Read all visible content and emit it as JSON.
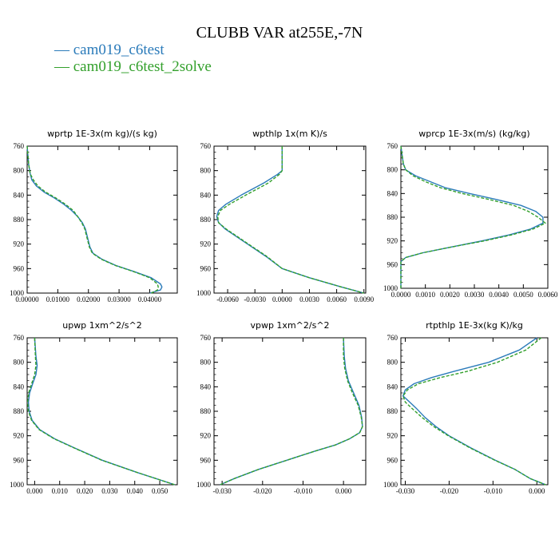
{
  "title": "CLUBB VAR at255E,-7N",
  "legend": [
    {
      "name": "cam019_c6test",
      "color": "#2b7bba",
      "dash": false
    },
    {
      "name": "cam019_c6test_2solve",
      "color": "#33a02c",
      "dash": true
    }
  ],
  "chart_data": [
    {
      "type": "line",
      "title": "wprtp  1E-3x(m kg)/(s kg)",
      "xlim": [
        0,
        0.049
      ],
      "ylim": [
        760,
        1000
      ],
      "y_inverted": true,
      "xticks": [
        "0.00000",
        "0.01000",
        "0.02000",
        "0.03000",
        "0.04000"
      ],
      "xtick_values": [
        0,
        0.01,
        0.02,
        0.03,
        0.04
      ],
      "yticks": [
        "760",
        "800",
        "840",
        "880",
        "920",
        "960",
        "1000"
      ],
      "series": [
        {
          "name": "cam019_c6test",
          "y": [
            760,
            790,
            805,
            815,
            825,
            835,
            845,
            855,
            865,
            875,
            885,
            895,
            905,
            915,
            925,
            935,
            945,
            955,
            965,
            975,
            985,
            990,
            995,
            1000
          ],
          "x": [
            0,
            0.0005,
            0.001,
            0.0015,
            0.003,
            0.0055,
            0.009,
            0.012,
            0.0145,
            0.0165,
            0.018,
            0.019,
            0.0195,
            0.02,
            0.0205,
            0.0215,
            0.0245,
            0.029,
            0.035,
            0.0405,
            0.0435,
            0.044,
            0.0435,
            0.04
          ]
        },
        {
          "name": "cam019_c6test_2solve",
          "y": [
            760,
            790,
            805,
            815,
            825,
            835,
            845,
            855,
            865,
            875,
            885,
            895,
            905,
            915,
            925,
            935,
            945,
            955,
            965,
            975,
            985,
            990,
            995,
            1000
          ],
          "x": [
            0,
            0.0005,
            0.001,
            0.002,
            0.0035,
            0.006,
            0.0095,
            0.0125,
            0.015,
            0.0165,
            0.0178,
            0.0188,
            0.0193,
            0.0198,
            0.0203,
            0.0213,
            0.0243,
            0.0288,
            0.0348,
            0.04,
            0.0425,
            0.0428,
            0.0425,
            0.0405
          ]
        }
      ]
    },
    {
      "type": "line",
      "title": "wpthlp  1x(m K)/s",
      "xlim": [
        -0.0075,
        0.0092
      ],
      "ylim": [
        760,
        1000
      ],
      "y_inverted": true,
      "xticks": [
        "-0.0060",
        "-0.0030",
        "0.0000",
        "0.0030",
        "0.0060",
        "0.0090"
      ],
      "xtick_values": [
        -0.006,
        -0.003,
        0,
        0.003,
        0.006,
        0.009
      ],
      "yticks": [
        "760",
        "800",
        "840",
        "880",
        "920",
        "960",
        "1000"
      ],
      "series": [
        {
          "name": "cam019_c6test",
          "y": [
            760,
            800,
            806,
            820,
            840,
            855,
            865,
            875,
            885,
            895,
            905,
            920,
            940,
            960,
            975,
            990,
            1000
          ],
          "x": [
            0,
            0,
            -0.0005,
            -0.002,
            -0.0045,
            -0.0062,
            -0.007,
            -0.0072,
            -0.007,
            -0.0063,
            -0.0053,
            -0.0038,
            -0.0018,
            0,
            0.003,
            0.0065,
            0.009
          ]
        },
        {
          "name": "cam019_c6test_2solve",
          "y": [
            760,
            800,
            806,
            820,
            840,
            855,
            865,
            875,
            885,
            895,
            905,
            920,
            940,
            960,
            975,
            990,
            1000
          ],
          "x": [
            0,
            0,
            -0.0003,
            -0.0015,
            -0.004,
            -0.0058,
            -0.0068,
            -0.0071,
            -0.007,
            -0.0062,
            -0.0052,
            -0.0037,
            -0.0017,
            0,
            0.003,
            0.0065,
            0.009
          ]
        }
      ]
    },
    {
      "type": "line",
      "title": "wprcp  1E-3x(m/s) (kg/kg)",
      "xlim": [
        0,
        0.006
      ],
      "ylim": [
        760,
        1000
      ],
      "y_inverted": true,
      "xticks": [
        "0.0000",
        "0.0010",
        "0.0020",
        "0.0030",
        "0.0040",
        "0.0050",
        "0.0060"
      ],
      "xtick_values": [
        0,
        0.001,
        0.002,
        0.003,
        0.004,
        0.005,
        0.006
      ],
      "yticks": [
        "760",
        "800",
        "840",
        "880",
        "920",
        "960",
        "1000"
      ],
      "series": [
        {
          "name": "cam019_c6test",
          "y": [
            760,
            790,
            800,
            810,
            820,
            830,
            840,
            850,
            860,
            870,
            880,
            890,
            900,
            910,
            920,
            930,
            940,
            948,
            955,
            1000
          ],
          "x": [
            0,
            0.0001,
            0.0002,
            0.0006,
            0.0012,
            0.0018,
            0.0028,
            0.0039,
            0.0049,
            0.0055,
            0.0058,
            0.0058,
            0.0053,
            0.0044,
            0.0033,
            0.0021,
            0.0009,
            0.0002,
            0,
            0
          ]
        },
        {
          "name": "cam019_c6test_2solve",
          "y": [
            760,
            790,
            800,
            810,
            820,
            830,
            840,
            850,
            860,
            870,
            880,
            890,
            900,
            910,
            920,
            930,
            940,
            948,
            955,
            1000
          ],
          "x": [
            0,
            0.0001,
            0.0002,
            0.0005,
            0.001,
            0.0016,
            0.0025,
            0.0036,
            0.0046,
            0.0052,
            0.0056,
            0.0059,
            0.0054,
            0.0045,
            0.0034,
            0.0021,
            0.0009,
            0.0002,
            0,
            0
          ]
        }
      ]
    },
    {
      "type": "line",
      "title": "upwp  1xm^2/s^2",
      "xlim": [
        -0.003,
        0.057
      ],
      "ylim": [
        760,
        1000
      ],
      "y_inverted": true,
      "xticks": [
        "0.000",
        "0.010",
        "0.020",
        "0.030",
        "0.040",
        "0.050"
      ],
      "xtick_values": [
        0,
        0.01,
        0.02,
        0.03,
        0.04,
        0.05
      ],
      "yticks": [
        "760",
        "800",
        "840",
        "880",
        "920",
        "960",
        "1000"
      ],
      "series": [
        {
          "name": "cam019_c6test",
          "y": [
            760,
            790,
            805,
            820,
            835,
            850,
            865,
            880,
            895,
            910,
            925,
            940,
            960,
            980,
            1000
          ],
          "x": [
            0,
            0.0005,
            0.001,
            0.0005,
            -0.0008,
            -0.002,
            -0.0025,
            -0.0022,
            -0.001,
            0.002,
            0.008,
            0.016,
            0.027,
            0.041,
            0.056
          ]
        },
        {
          "name": "cam019_c6test_2solve",
          "y": [
            760,
            790,
            805,
            820,
            835,
            850,
            865,
            880,
            895,
            910,
            925,
            940,
            960,
            980,
            1000
          ],
          "x": [
            0,
            0.0003,
            0.0005,
            0,
            -0.0012,
            -0.0024,
            -0.0028,
            -0.0025,
            -0.0012,
            0.0018,
            0.0078,
            0.0158,
            0.0268,
            0.041,
            0.056
          ]
        }
      ]
    },
    {
      "type": "line",
      "title": "vpwp  1xm^2/s^2",
      "xlim": [
        -0.032,
        0.0055
      ],
      "ylim": [
        760,
        1000
      ],
      "y_inverted": true,
      "xticks": [
        "-0.030",
        "-0.020",
        "-0.010",
        "0.000"
      ],
      "xtick_values": [
        -0.03,
        -0.02,
        -0.01,
        0
      ],
      "yticks": [
        "760",
        "800",
        "840",
        "880",
        "920",
        "960",
        "1000"
      ],
      "series": [
        {
          "name": "cam019_c6test",
          "y": [
            760,
            790,
            810,
            830,
            850,
            870,
            890,
            905,
            915,
            925,
            935,
            945,
            960,
            975,
            990,
            1000
          ],
          "x": [
            0,
            0.0002,
            0.0005,
            0.0012,
            0.0025,
            0.0038,
            0.0045,
            0.0047,
            0.004,
            0.0015,
            -0.002,
            -0.007,
            -0.014,
            -0.021,
            -0.027,
            -0.0305
          ]
        },
        {
          "name": "cam019_c6test_2solve",
          "y": [
            760,
            790,
            810,
            830,
            850,
            870,
            890,
            905,
            915,
            925,
            935,
            945,
            960,
            975,
            990,
            1000
          ],
          "x": [
            0,
            0,
            0.0003,
            0.001,
            0.0022,
            0.0036,
            0.0044,
            0.0047,
            0.004,
            0.0015,
            -0.002,
            -0.007,
            -0.014,
            -0.021,
            -0.027,
            -0.0305
          ]
        }
      ]
    },
    {
      "type": "line",
      "title": "rtpthlp  1E-3x(kg K)/kg",
      "xlim": [
        -0.031,
        0.0025
      ],
      "ylim": [
        760,
        1000
      ],
      "y_inverted": true,
      "xticks": [
        "-0.030",
        "-0.020",
        "-0.010",
        "0.000"
      ],
      "xtick_values": [
        -0.03,
        -0.02,
        -0.01,
        0
      ],
      "yticks": [
        "760",
        "800",
        "840",
        "880",
        "920",
        "960",
        "1000"
      ],
      "series": [
        {
          "name": "cam019_c6test",
          "y": [
            760,
            780,
            800,
            815,
            825,
            835,
            845,
            855,
            865,
            875,
            890,
            905,
            920,
            940,
            960,
            975,
            990,
            1000
          ],
          "x": [
            0,
            -0.004,
            -0.011,
            -0.019,
            -0.024,
            -0.028,
            -0.03,
            -0.0305,
            -0.029,
            -0.0275,
            -0.0255,
            -0.023,
            -0.02,
            -0.015,
            -0.0095,
            -0.005,
            -0.0015,
            0.002
          ]
        },
        {
          "name": "cam019_c6test_2solve",
          "y": [
            760,
            780,
            800,
            815,
            825,
            835,
            845,
            855,
            865,
            875,
            890,
            905,
            920,
            940,
            960,
            975,
            990,
            1000
          ],
          "x": [
            0.001,
            -0.0025,
            -0.009,
            -0.016,
            -0.022,
            -0.027,
            -0.0295,
            -0.0305,
            -0.03,
            -0.0285,
            -0.0262,
            -0.0235,
            -0.0202,
            -0.0152,
            -0.0096,
            -0.005,
            -0.0015,
            0.002
          ]
        }
      ]
    }
  ]
}
